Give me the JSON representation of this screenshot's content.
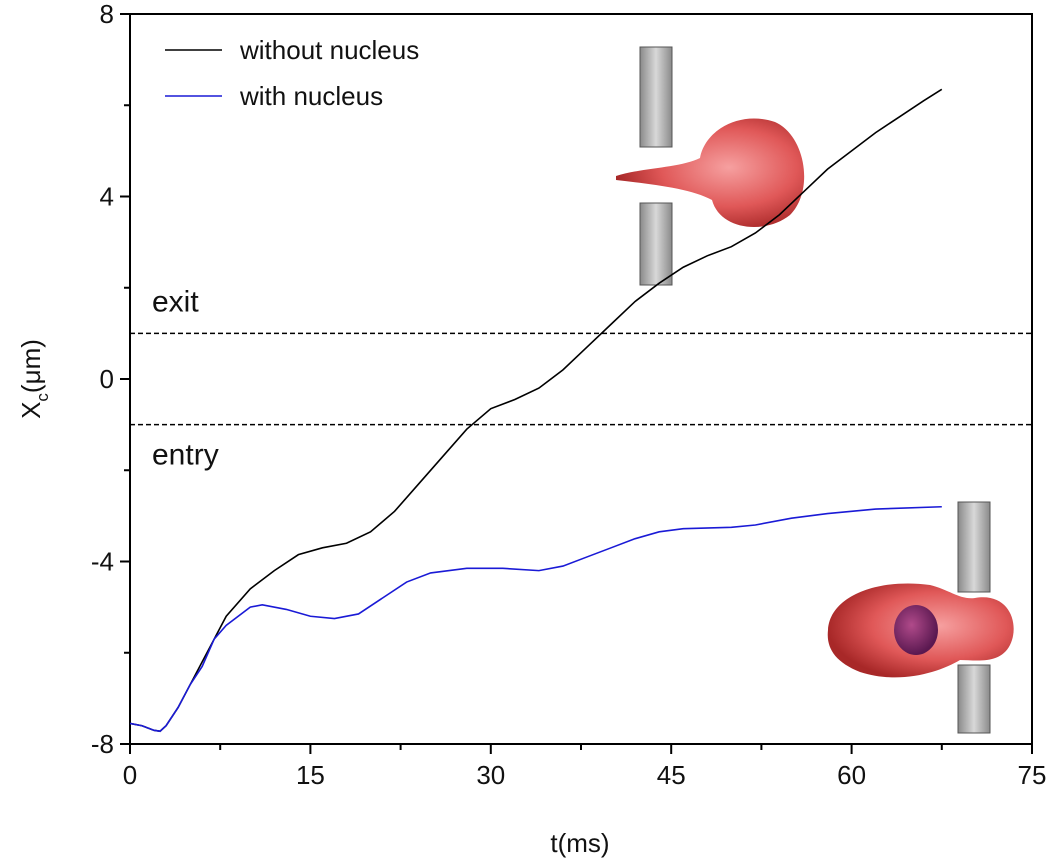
{
  "chart_data": {
    "type": "line",
    "xlabel": "t(ms)",
    "ylabel": {
      "main": "X",
      "sub": "c",
      "unit": "(μm)"
    },
    "xlim": [
      0,
      75
    ],
    "xticks": [
      0,
      15,
      30,
      45,
      60,
      75
    ],
    "ylim": [
      -8,
      8
    ],
    "yticks": [
      -8,
      -4,
      0,
      4,
      8
    ],
    "legend": "upper left",
    "hlines": [
      {
        "value": 1,
        "label": "exit"
      },
      {
        "value": -1,
        "label": "entry"
      }
    ],
    "series": [
      {
        "name": "without nucleus",
        "color": "#000000",
        "x": [
          0,
          1,
          2,
          2.5,
          3,
          4,
          5,
          6,
          7,
          8,
          10,
          12,
          14,
          16,
          18,
          20,
          22,
          24,
          26,
          28,
          30,
          32,
          34,
          36,
          38,
          40,
          42,
          44,
          46,
          48,
          50,
          52,
          54,
          56,
          58,
          60,
          62,
          64,
          66,
          67.5
        ],
        "values": [
          -7.55,
          -7.6,
          -7.7,
          -7.72,
          -7.6,
          -7.2,
          -6.7,
          -6.2,
          -5.7,
          -5.2,
          -4.6,
          -4.2,
          -3.85,
          -3.7,
          -3.6,
          -3.35,
          -2.9,
          -2.3,
          -1.7,
          -1.1,
          -0.65,
          -0.45,
          -0.2,
          0.2,
          0.7,
          1.2,
          1.7,
          2.1,
          2.45,
          2.7,
          2.9,
          3.2,
          3.6,
          4.1,
          4.6,
          5.0,
          5.4,
          5.75,
          6.1,
          6.35
        ]
      },
      {
        "name": "with nucleus",
        "color": "#1a1ad6",
        "x": [
          0,
          1,
          2,
          2.5,
          3,
          4,
          5,
          6,
          7,
          8,
          10,
          11,
          13,
          15,
          17,
          19,
          21,
          23,
          25,
          28,
          31,
          34,
          36,
          38,
          40,
          42,
          44,
          46,
          50,
          52,
          55,
          58,
          62,
          67.5
        ],
        "values": [
          -7.55,
          -7.6,
          -7.7,
          -7.72,
          -7.6,
          -7.2,
          -6.7,
          -6.3,
          -5.7,
          -5.4,
          -5.0,
          -4.95,
          -5.05,
          -5.2,
          -5.25,
          -5.15,
          -4.8,
          -4.45,
          -4.25,
          -4.15,
          -4.15,
          -4.2,
          -4.1,
          -3.9,
          -3.7,
          -3.5,
          -3.35,
          -3.28,
          -3.25,
          -3.2,
          -3.05,
          -2.95,
          -2.85,
          -2.8
        ]
      }
    ]
  }
}
